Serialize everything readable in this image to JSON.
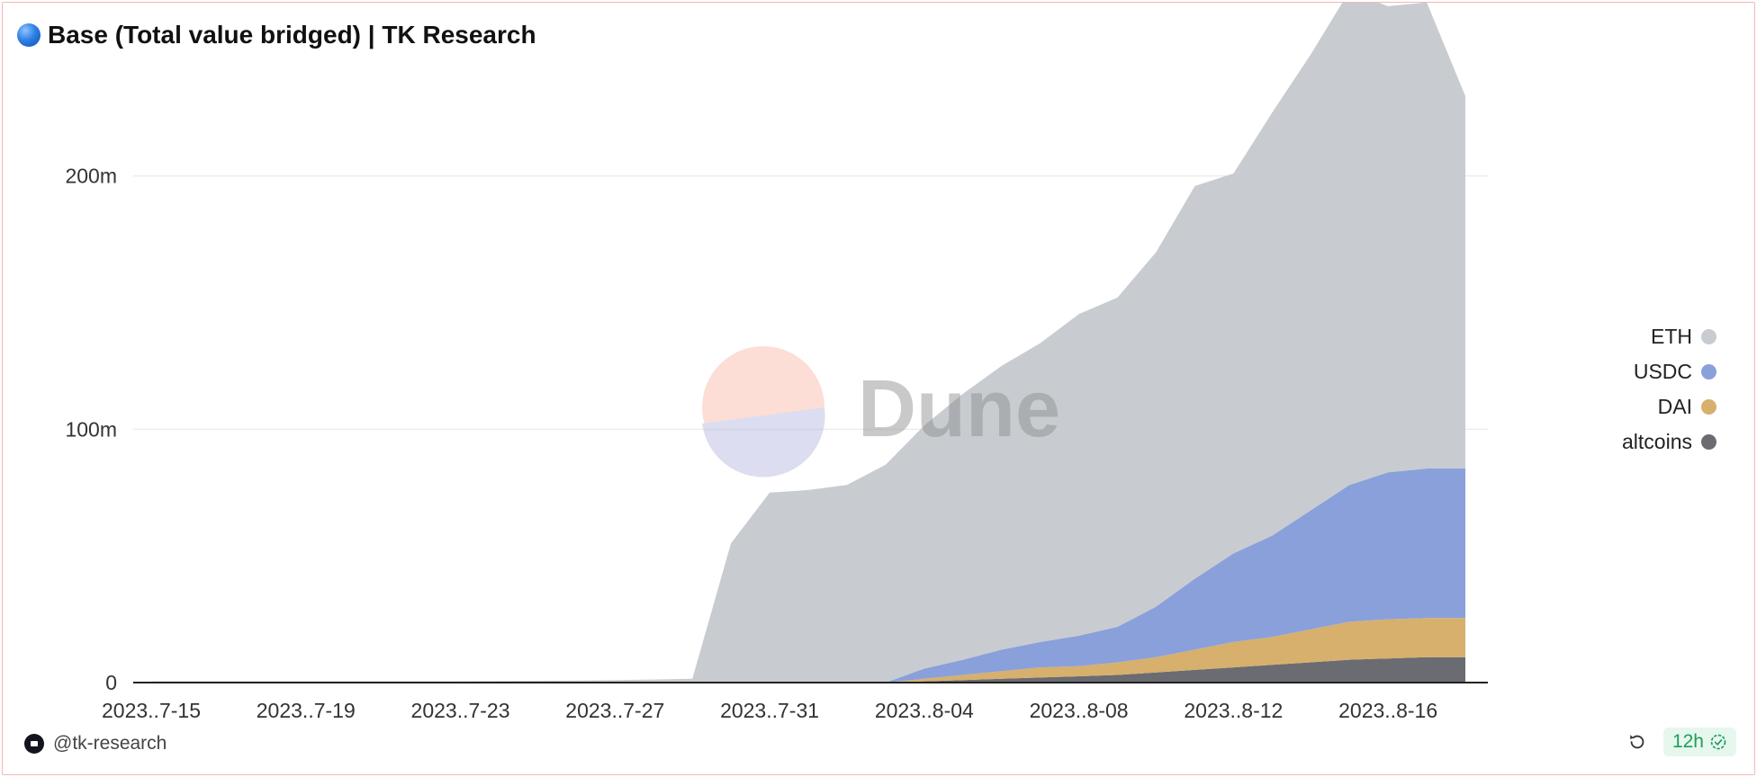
{
  "header": {
    "title": "Base (Total value bridged) | TK Research",
    "title_icon": "blue-circle-icon"
  },
  "watermark": {
    "text": "Dune"
  },
  "footer": {
    "author": "@tk-research",
    "refresh_icon": "refresh-icon",
    "badge_text": "12h",
    "badge_icon": "check-badge-icon"
  },
  "colors": {
    "ETH": "#c8ccd0",
    "USDC": "#8aa0da",
    "DAI": "#d6b06c",
    "altcoins": "#6b6b72",
    "border": "#f2b8b5",
    "badge_green": "#1e9e5a"
  },
  "chart_data": {
    "type": "area",
    "stacked": true,
    "title": "Base (Total value bridged) | TK Research",
    "xlabel": "",
    "ylabel": "",
    "ylim": [
      0,
      240000000
    ],
    "y_ticks": [
      0,
      100000000,
      200000000
    ],
    "y_tick_labels": [
      "0",
      "100m",
      "200m"
    ],
    "x_tick_labels": [
      "2023..7-15",
      "2023..7-19",
      "2023..7-23",
      "2023..7-27",
      "2023..7-31",
      "2023..8-04",
      "2023..8-08",
      "2023..8-12",
      "2023..8-16"
    ],
    "x": [
      "2023-07-15",
      "2023-07-16",
      "2023-07-17",
      "2023-07-18",
      "2023-07-19",
      "2023-07-20",
      "2023-07-21",
      "2023-07-22",
      "2023-07-23",
      "2023-07-24",
      "2023-07-25",
      "2023-07-26",
      "2023-07-27",
      "2023-07-28",
      "2023-07-29",
      "2023-07-30",
      "2023-07-31",
      "2023-08-01",
      "2023-08-02",
      "2023-08-03",
      "2023-08-04",
      "2023-08-05",
      "2023-08-06",
      "2023-08-07",
      "2023-08-08",
      "2023-08-09",
      "2023-08-10",
      "2023-08-11",
      "2023-08-12",
      "2023-08-13",
      "2023-08-14",
      "2023-08-15",
      "2023-08-16",
      "2023-08-17",
      "2023-08-18"
    ],
    "legend": "right",
    "grid": true,
    "series": [
      {
        "name": "altcoins",
        "values": [
          0,
          0,
          0,
          0,
          0,
          0,
          0,
          0,
          0,
          0,
          0,
          0,
          0,
          0,
          0,
          0,
          0,
          0,
          0,
          0,
          0.5,
          1,
          1.5,
          2,
          2.5,
          3,
          4,
          5,
          6,
          7,
          8,
          9,
          9.5,
          10,
          10
        ]
      },
      {
        "name": "DAI",
        "values": [
          0,
          0,
          0,
          0,
          0,
          0,
          0,
          0,
          0,
          0,
          0,
          0,
          0,
          0,
          0,
          0,
          0,
          0,
          0,
          0,
          1,
          2,
          3,
          4,
          4,
          5,
          6,
          8,
          10,
          11,
          13,
          15,
          15.5,
          15.5,
          15.5
        ]
      },
      {
        "name": "USDC",
        "values": [
          0,
          0,
          0,
          0,
          0,
          0,
          0,
          0,
          0,
          0,
          0,
          0,
          0,
          0,
          0,
          0,
          0,
          0,
          0,
          0,
          4,
          6,
          8.5,
          10,
          12,
          14,
          20,
          28,
          35,
          40,
          47,
          54,
          58,
          59,
          59
        ]
      },
      {
        "name": "ETH",
        "values": [
          0.5,
          0.5,
          0.5,
          0.5,
          0.5,
          0.5,
          0.5,
          0.5,
          0.5,
          0.6,
          0.7,
          0.8,
          1,
          1.2,
          1.5,
          55,
          75,
          76,
          78,
          86,
          96,
          105,
          112,
          118,
          127,
          130,
          140,
          155,
          150,
          167,
          180,
          195,
          184,
          184,
          147
        ]
      }
    ]
  }
}
